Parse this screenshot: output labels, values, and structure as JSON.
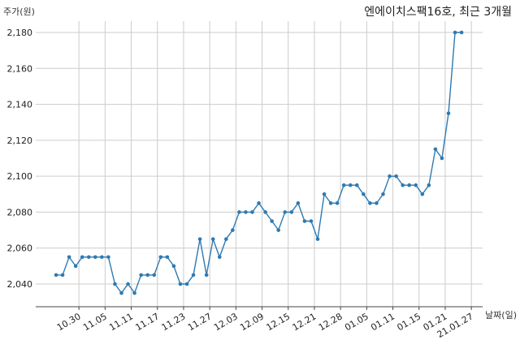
{
  "chart_data": {
    "type": "line",
    "title": "엔에이치스팩16호, 최근 3개월",
    "ylabel": "주가(원)",
    "xlabel": "날짜(일)",
    "ylim": [
      2030,
      2190
    ],
    "yticks": [
      2040,
      2060,
      2080,
      2100,
      2120,
      2140,
      2160,
      2180
    ],
    "ytick_labels": [
      "2,040",
      "2,060",
      "2,080",
      "2,100",
      "2,120",
      "2,140",
      "2,160",
      "2,180"
    ],
    "xtick_labels": [
      "10.30",
      "11.05",
      "11.11",
      "11.17",
      "11.23",
      "11.27",
      "12.03",
      "12.09",
      "12.15",
      "12.21",
      "12.28",
      "01.05",
      "01.11",
      "01.15",
      "01.21",
      "21.01.27"
    ],
    "xtick_index": [
      3,
      7,
      11,
      15,
      19,
      23,
      27,
      31,
      35,
      39,
      43,
      47,
      51,
      55,
      59,
      63
    ],
    "grid": true,
    "color": "#2e7ab2",
    "series": [
      {
        "values": [
          2045,
          2045,
          2055,
          2050,
          2055,
          2055,
          2055,
          2055,
          2055,
          2040,
          2035,
          2040,
          2035,
          2045,
          2045,
          2045,
          2055,
          2055,
          2050,
          2040,
          2040,
          2045,
          2065,
          2045,
          2065,
          2055,
          2065,
          2070,
          2080,
          2080,
          2080,
          2085,
          2080,
          2075,
          2070,
          2080,
          2080,
          2085,
          2075,
          2075,
          2065,
          2090,
          2085,
          2085,
          2095,
          2095,
          2095,
          2090,
          2085,
          2085,
          2090,
          2100,
          2100,
          2095,
          2095,
          2095,
          2090,
          2095,
          2115,
          2110,
          2135,
          2180,
          2180
        ]
      }
    ]
  }
}
